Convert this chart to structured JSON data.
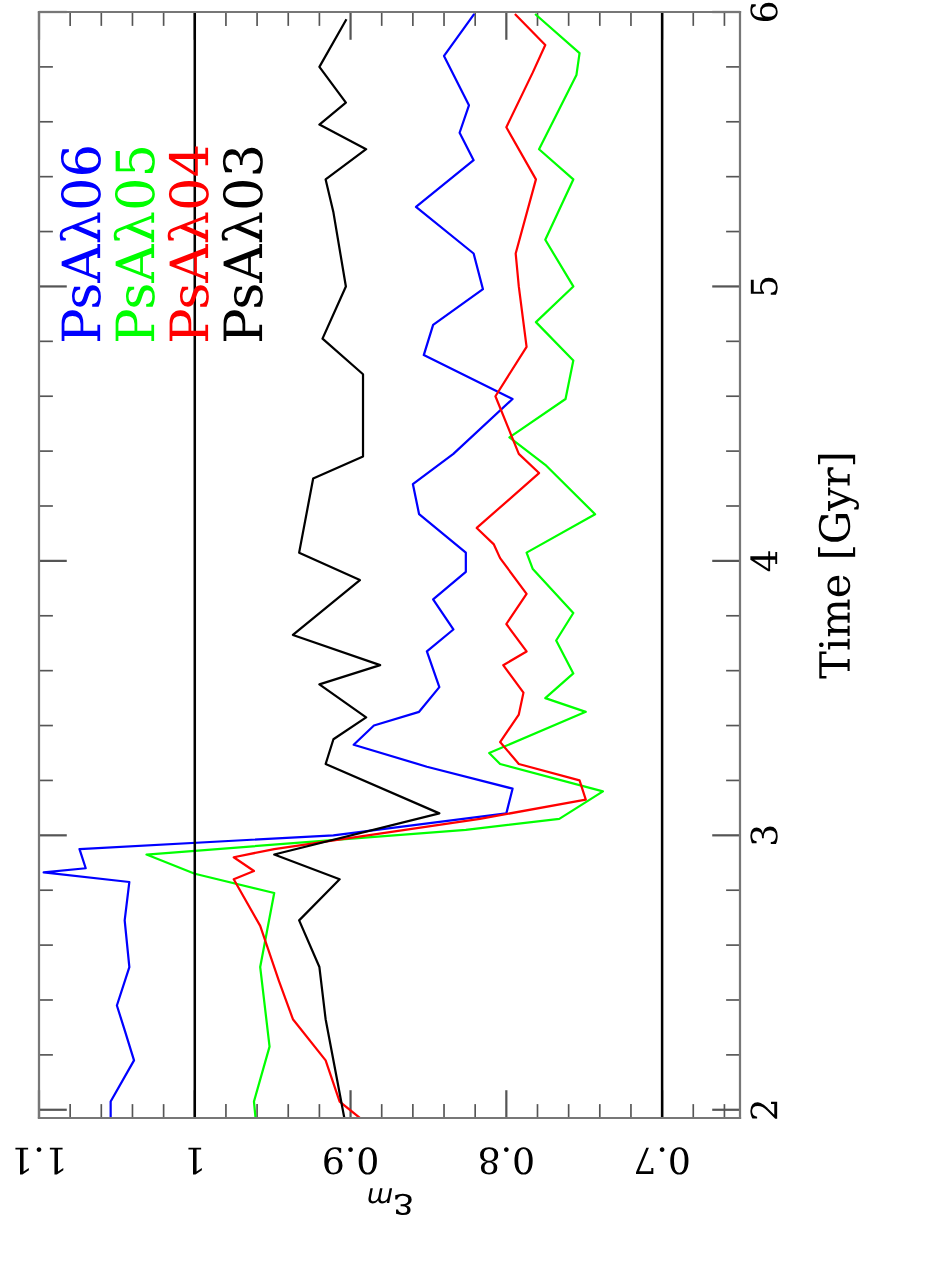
{
  "chart_data": {
    "type": "line",
    "xlabel": "ε$_{m}$",
    "ylabel": "Time [Gyr]",
    "xlim": [
      1.1,
      0.65
    ],
    "xticks": [
      1.1,
      1,
      0.9,
      0.8,
      0.7
    ],
    "ylim": [
      1.97,
      6
    ],
    "yticks": [
      2,
      3,
      4,
      5,
      6
    ],
    "legend": "top left",
    "line_style": "solid",
    "marker": "none",
    "grid": false,
    "ref_lines": [
      {
        "axis": "x",
        "value": 1,
        "color": "#000000"
      },
      {
        "axis": "x",
        "value": 0.7,
        "color": "#000000"
      }
    ],
    "series": [
      {
        "name": "PsAλ06",
        "color": "#0000ff",
        "values": [
          1.97,
          2.03,
          2.18,
          2.29,
          2.38,
          2.52,
          2.69,
          2.83,
          2.865,
          2.88,
          2.95,
          3.0,
          3.08,
          3.17,
          3.25,
          3.33,
          3.4,
          3.45,
          3.54,
          3.67,
          3.75,
          3.86,
          3.96,
          4.03,
          4.17,
          4.28,
          4.39,
          4.59,
          4.75,
          4.86,
          4.99,
          5.12,
          5.29,
          5.46,
          5.56,
          5.66,
          5.84,
          5.99
        ],
        "x": [
          1.054,
          1.054,
          1.039,
          1.045,
          1.05,
          1.042,
          1.045,
          1.042,
          1.097,
          1.07,
          1.074,
          0.911,
          0.8,
          0.796,
          0.851,
          0.898,
          0.885,
          0.856,
          0.843,
          0.851,
          0.834,
          0.847,
          0.826,
          0.826,
          0.856,
          0.86,
          0.834,
          0.796,
          0.853,
          0.847,
          0.815,
          0.821,
          0.858,
          0.821,
          0.83,
          0.824,
          0.84,
          0.821
        ]
      },
      {
        "name": "PsAλ05",
        "color": "#00ff00",
        "values": [
          1.97,
          2.03,
          2.23,
          2.52,
          2.79,
          2.86,
          2.93,
          3.02,
          3.06,
          3.16,
          3.26,
          3.3,
          3.45,
          3.5,
          3.59,
          3.71,
          3.81,
          3.97,
          4.03,
          4.17,
          4.35,
          4.45,
          4.59,
          4.73,
          4.87,
          5.0,
          5.17,
          5.39,
          5.5,
          5.77,
          5.85,
          5.99
        ],
        "x": [
          0.961,
          0.962,
          0.952,
          0.958,
          0.949,
          1.0,
          1.031,
          0.826,
          0.766,
          0.738,
          0.804,
          0.811,
          0.749,
          0.775,
          0.757,
          0.768,
          0.757,
          0.783,
          0.787,
          0.743,
          0.775,
          0.798,
          0.762,
          0.757,
          0.781,
          0.757,
          0.775,
          0.757,
          0.779,
          0.755,
          0.753,
          0.781
        ]
      },
      {
        "name": "PsAλ04",
        "color": "#ff0000",
        "values": [
          1.97,
          2.03,
          2.18,
          2.33,
          2.47,
          2.67,
          2.84,
          2.87,
          2.92,
          2.95,
          3.06,
          3.13,
          3.2,
          3.26,
          3.34,
          3.44,
          3.52,
          3.62,
          3.67,
          3.77,
          3.88,
          4.01,
          4.06,
          4.12,
          4.32,
          4.39,
          4.6,
          4.78,
          5.0,
          5.12,
          5.39,
          5.58,
          5.78,
          5.88,
          5.99
        ],
        "x": [
          0.894,
          0.907,
          0.916,
          0.937,
          0.946,
          0.958,
          0.975,
          0.962,
          0.975,
          0.949,
          0.817,
          0.749,
          0.753,
          0.792,
          0.804,
          0.792,
          0.789,
          0.802,
          0.787,
          0.8,
          0.787,
          0.804,
          0.808,
          0.819,
          0.779,
          0.792,
          0.807,
          0.787,
          0.792,
          0.794,
          0.781,
          0.8,
          0.783,
          0.775,
          0.794
        ]
      },
      {
        "name": "PsAλ03",
        "color": "#000000",
        "values": [
          1.97,
          2.06,
          2.33,
          2.52,
          2.69,
          2.84,
          2.93,
          3.08,
          3.26,
          3.35,
          3.43,
          3.55,
          3.62,
          3.73,
          3.93,
          4.03,
          4.3,
          4.38,
          4.68,
          4.81,
          5.0,
          5.27,
          5.39,
          5.5,
          5.59,
          5.67,
          5.8,
          5.97
        ],
        "x": [
          0.904,
          0.907,
          0.916,
          0.92,
          0.933,
          0.907,
          0.949,
          0.843,
          0.916,
          0.911,
          0.89,
          0.92,
          0.881,
          0.937,
          0.894,
          0.933,
          0.924,
          0.892,
          0.892,
          0.918,
          0.903,
          0.911,
          0.916,
          0.89,
          0.92,
          0.903,
          0.92,
          0.903
        ]
      }
    ]
  }
}
